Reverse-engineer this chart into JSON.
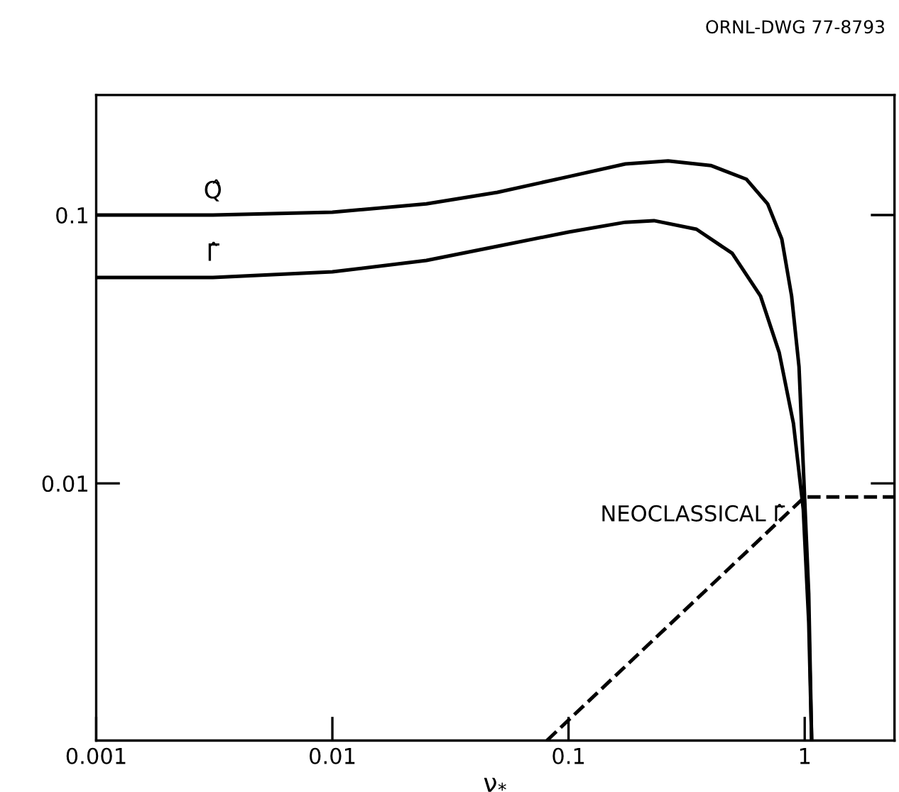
{
  "chart_data": {
    "type": "line",
    "xlabel": "ν$_{*}$",
    "log": "xy",
    "xlim": [
      0.001,
      2.4
    ],
    "ylim": [
      0.0011,
      0.28
    ],
    "xticks": [
      0.001,
      0.01,
      0.1,
      1
    ],
    "yticks": [
      0.1,
      0.01
    ],
    "grid": false,
    "legend": false,
    "annotations": [
      "ORNL-DWG 77-8793"
    ],
    "series": [
      {
        "name": "Q̂",
        "color": "#000000",
        "line_style": "solid",
        "x": [
          0.001,
          0.00312,
          0.01,
          0.025,
          0.05,
          0.1,
          0.174,
          0.264,
          0.4,
          0.566,
          0.697,
          0.8,
          0.88,
          0.946,
          0.986,
          1.04,
          1.07
        ],
        "values": [
          0.1,
          0.1,
          0.1025,
          0.11,
          0.1215,
          0.139,
          0.155,
          0.159,
          0.153,
          0.136,
          0.11,
          0.0813,
          0.0499,
          0.0272,
          0.0116,
          0.00387,
          0.0011
        ]
      },
      {
        "name": "Γ̂",
        "color": "#000000",
        "line_style": "solid",
        "x": [
          0.001,
          0.00312,
          0.01,
          0.025,
          0.05,
          0.1,
          0.174,
          0.23,
          0.348,
          0.493,
          0.65,
          0.78,
          0.896,
          0.986,
          1.04,
          1.07
        ],
        "values": [
          0.0585,
          0.0585,
          0.0614,
          0.0677,
          0.0765,
          0.0864,
          0.094,
          0.0953,
          0.0885,
          0.072,
          0.0499,
          0.0307,
          0.0167,
          0.008,
          0.00303,
          0.0011
        ]
      },
      {
        "name": "NEOCLASSICAL Γ̂",
        "color": "#000000",
        "line_style": "dashed",
        "x": [
          0.081,
          1.0,
          2.4
        ],
        "values": [
          0.0011,
          0.0089,
          0.0089
        ]
      }
    ]
  }
}
